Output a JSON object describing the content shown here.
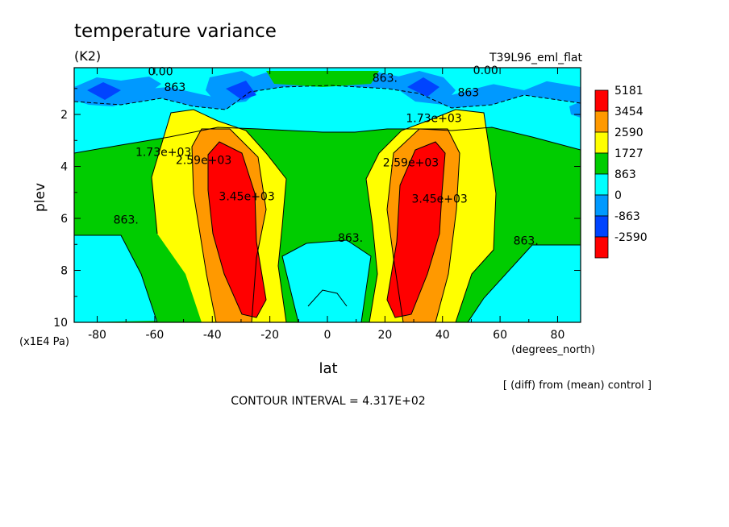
{
  "chart_data": {
    "type": "heatmap",
    "title": "temperature variance",
    "units": "(K2)",
    "run_label": "T39L96_eml_flat",
    "xlabel": "lat",
    "x_units": "(degrees_north)",
    "ylabel": "plev",
    "y_units": "(x1E4 Pa)",
    "xlim": [
      -88,
      88
    ],
    "ylim": [
      10,
      0.2
    ],
    "x_ticks": [
      -80,
      -60,
      -40,
      -20,
      0,
      20,
      40,
      60,
      80
    ],
    "y_ticks": [
      2,
      4,
      6,
      8,
      10
    ],
    "legend": {
      "placement": "right",
      "labels": [
        "5181",
        "3454",
        "2590",
        "1727",
        "863",
        "0",
        "-863",
        "-2590"
      ],
      "colors": [
        "#ff0000",
        "#ff9900",
        "#ffff00",
        "#00cc00",
        "#00ffff",
        "#0099ff",
        "#0044ff",
        "#ff0000"
      ]
    },
    "contour_labels": [
      {
        "text": "0.00",
        "lat": -58,
        "plev": 0.5
      },
      {
        "text": "863",
        "lat": -53,
        "plev": 1.1
      },
      {
        "text": "863.",
        "lat": 20,
        "plev": 0.75
      },
      {
        "text": "0.00",
        "lat": 55,
        "plev": 0.45
      },
      {
        "text": "863",
        "lat": 49,
        "plev": 1.3
      },
      {
        "text": "1.73e+03",
        "lat": 37,
        "plev": 2.3
      },
      {
        "text": "1.73e+03",
        "lat": -57,
        "plev": 3.6
      },
      {
        "text": "2.59e+03",
        "lat": -43,
        "plev": 3.9
      },
      {
        "text": "3.45e+03",
        "lat": -28,
        "plev": 5.3
      },
      {
        "text": "863.",
        "lat": -70,
        "plev": 6.2
      },
      {
        "text": "863.",
        "lat": 8,
        "plev": 6.9
      },
      {
        "text": "2.59e+03",
        "lat": 29,
        "plev": 4.0
      },
      {
        "text": "3.45e+03",
        "lat": 39,
        "plev": 5.4
      },
      {
        "text": "863.",
        "lat": 69,
        "plev": 7.0
      }
    ],
    "diff_note": "[ (diff) from (mean) control ]",
    "contour_interval": "CONTOUR INTERVAL = 4.317E+02"
  }
}
